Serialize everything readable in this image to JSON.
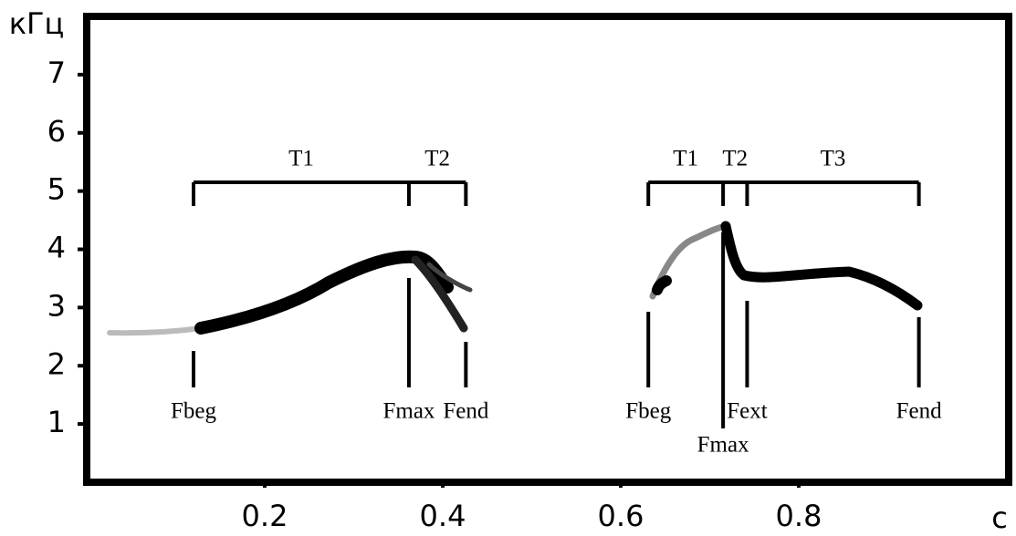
{
  "chart_data": {
    "type": "spectrogram",
    "x_label": "с",
    "y_label": "кГц",
    "xlim": [
      0,
      1.04
    ],
    "ylim": [
      0,
      8
    ],
    "xticks": [
      0.2,
      0.4,
      0.6,
      0.8
    ],
    "yticks": [
      1,
      2,
      3,
      4,
      5,
      6,
      7
    ],
    "calls": [
      {
        "segments": [
          "T1",
          "T2"
        ],
        "markers": [
          {
            "label": "Fbeg",
            "x": 0.12
          },
          {
            "label": "Fmax",
            "x": 0.362
          },
          {
            "label": "Fend",
            "x": 0.426
          }
        ]
      },
      {
        "segments": [
          "T1",
          "T2",
          "T3"
        ],
        "markers": [
          {
            "label": "Fbeg",
            "x": 0.631
          },
          {
            "label": "Fmax",
            "x": 0.715
          },
          {
            "label": "Fext",
            "x": 0.742
          },
          {
            "label": "Fend",
            "x": 0.935
          }
        ]
      }
    ]
  }
}
